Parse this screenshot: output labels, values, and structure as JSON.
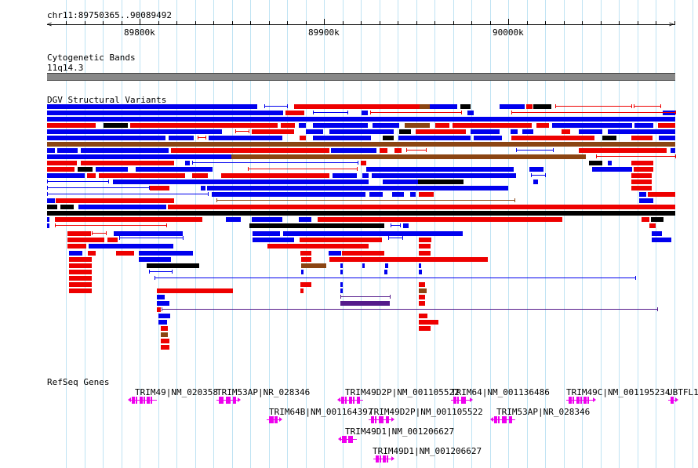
{
  "ruler": {
    "range_label": "chr11:89750365..90089492",
    "ticks": [
      "89800k",
      "89900k",
      "90000k"
    ]
  },
  "tracks": {
    "cytoband_title": "Cytogenetic Bands",
    "cytoband_label": "11q14.3",
    "dgv_title": "DGV Structural Variants",
    "refseq_title": "RefSeq Genes"
  },
  "genes": [
    {
      "label": "TRIM49|NM_020358"
    },
    {
      "label": "TRIM53AP|NR_028346"
    },
    {
      "label": "TRIM49D2P|NM_001105522"
    },
    {
      "label": "TRIM64|NM_001136486"
    },
    {
      "label": "TRIM49C|NM_001195234"
    },
    {
      "label": "UBTFL1"
    },
    {
      "label": "TRIM64B|NM_001164397"
    },
    {
      "label": "TRIM49D2P|NM_001105522"
    },
    {
      "label": "TRIM53AP|NR_028346"
    },
    {
      "label": "TRIM49D1|NM_001206627"
    },
    {
      "label": "TRIM49D1|NM_001206627"
    }
  ],
  "colors": {
    "gain": "#0000ee",
    "loss": "#ee0000",
    "both": "#8b4513",
    "complex": "#000000",
    "inversion": "#551a8b",
    "gene": "#ee00ee",
    "grid": "#bfe3f3",
    "band": "#888888"
  }
}
